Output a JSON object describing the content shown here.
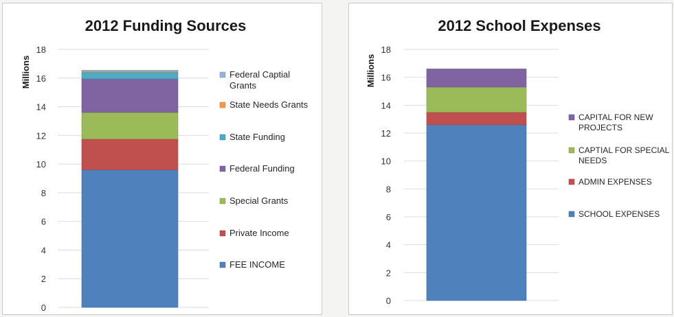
{
  "chart_data": [
    {
      "type": "bar",
      "stacked": true,
      "title": "2012 Funding Sources",
      "ylabel": "Millions",
      "xlabel": "",
      "ylim": [
        0,
        18
      ],
      "yticks": [
        0,
        2,
        4,
        6,
        8,
        10,
        12,
        14,
        16,
        18
      ],
      "grid": true,
      "legend_position": "right",
      "categories": [
        ""
      ],
      "series": [
        {
          "name": "FEE INCOME",
          "values": [
            9.6
          ],
          "color": "#4f81bd"
        },
        {
          "name": "Private Income",
          "values": [
            2.15
          ],
          "color": "#c0504d"
        },
        {
          "name": "Special Grants",
          "values": [
            1.85
          ],
          "color": "#9bbb59"
        },
        {
          "name": "Federal Funding",
          "values": [
            2.35
          ],
          "color": "#8064a2"
        },
        {
          "name": "State Funding",
          "values": [
            0.45
          ],
          "color": "#4bacc6"
        },
        {
          "name": "State Needs Grants",
          "values": [
            0.05
          ],
          "color": "#f79646"
        },
        {
          "name": "Federal Captial Grants",
          "values": [
            0.1
          ],
          "color": "#95b3d7"
        }
      ]
    },
    {
      "type": "bar",
      "stacked": true,
      "title": "2012 School Expenses",
      "ylabel": "Millions",
      "xlabel": "",
      "ylim": [
        0,
        18
      ],
      "yticks": [
        0,
        2,
        4,
        6,
        8,
        10,
        12,
        14,
        16,
        18
      ],
      "grid": true,
      "legend_position": "right",
      "categories": [
        ""
      ],
      "series": [
        {
          "name": "SCHOOL EXPENSES",
          "values": [
            12.6
          ],
          "color": "#4f81bd"
        },
        {
          "name": "ADMIN EXPENSES",
          "values": [
            0.9
          ],
          "color": "#c0504d"
        },
        {
          "name": "CAPTIAL FOR SPECIAL NEEDS",
          "values": [
            1.8
          ],
          "color": "#9bbb59"
        },
        {
          "name": "CAPITAL FOR NEW PROJECTS",
          "values": [
            1.3
          ],
          "color": "#8064a2"
        }
      ]
    }
  ]
}
